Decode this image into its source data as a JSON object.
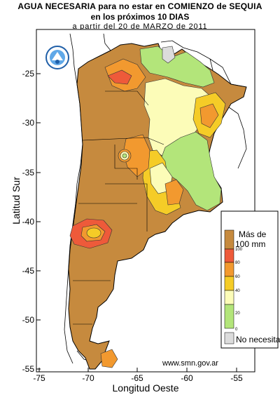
{
  "title": {
    "line1": "AGUA NECESARIA para no estar  en COMIENZO de SEQUIA",
    "line2": "en los próximos 10 DIAS",
    "line3": "a  partir  del  20  de  MARZO  de  2011"
  },
  "axes": {
    "x_label": "Longitud Oeste",
    "y_label": "Latitud Sur",
    "x_ticks": [
      "-75",
      "-70",
      "-65",
      "-60",
      "-55"
    ],
    "y_ticks": [
      "-25",
      "-30",
      "-35",
      "-40",
      "-45",
      "-50",
      "-55"
    ]
  },
  "legend": {
    "top_label_1": "Más de",
    "top_label_2": "100 mm",
    "bottom_label": "No necesita",
    "class_values": [
      "100",
      "80",
      "60",
      "40",
      "20",
      "0"
    ],
    "colors": {
      "over_100": "#c68a3e",
      "80_100": "#ee5a3a",
      "60_80": "#f2992f",
      "40_60": "#f5cc27",
      "20_40": "#fcfcb8",
      "0_20": "#b3e57a",
      "none": "#dcdcdc"
    }
  },
  "source_url": "www.smn.gov.ar",
  "logo_name": "smn-logo"
}
